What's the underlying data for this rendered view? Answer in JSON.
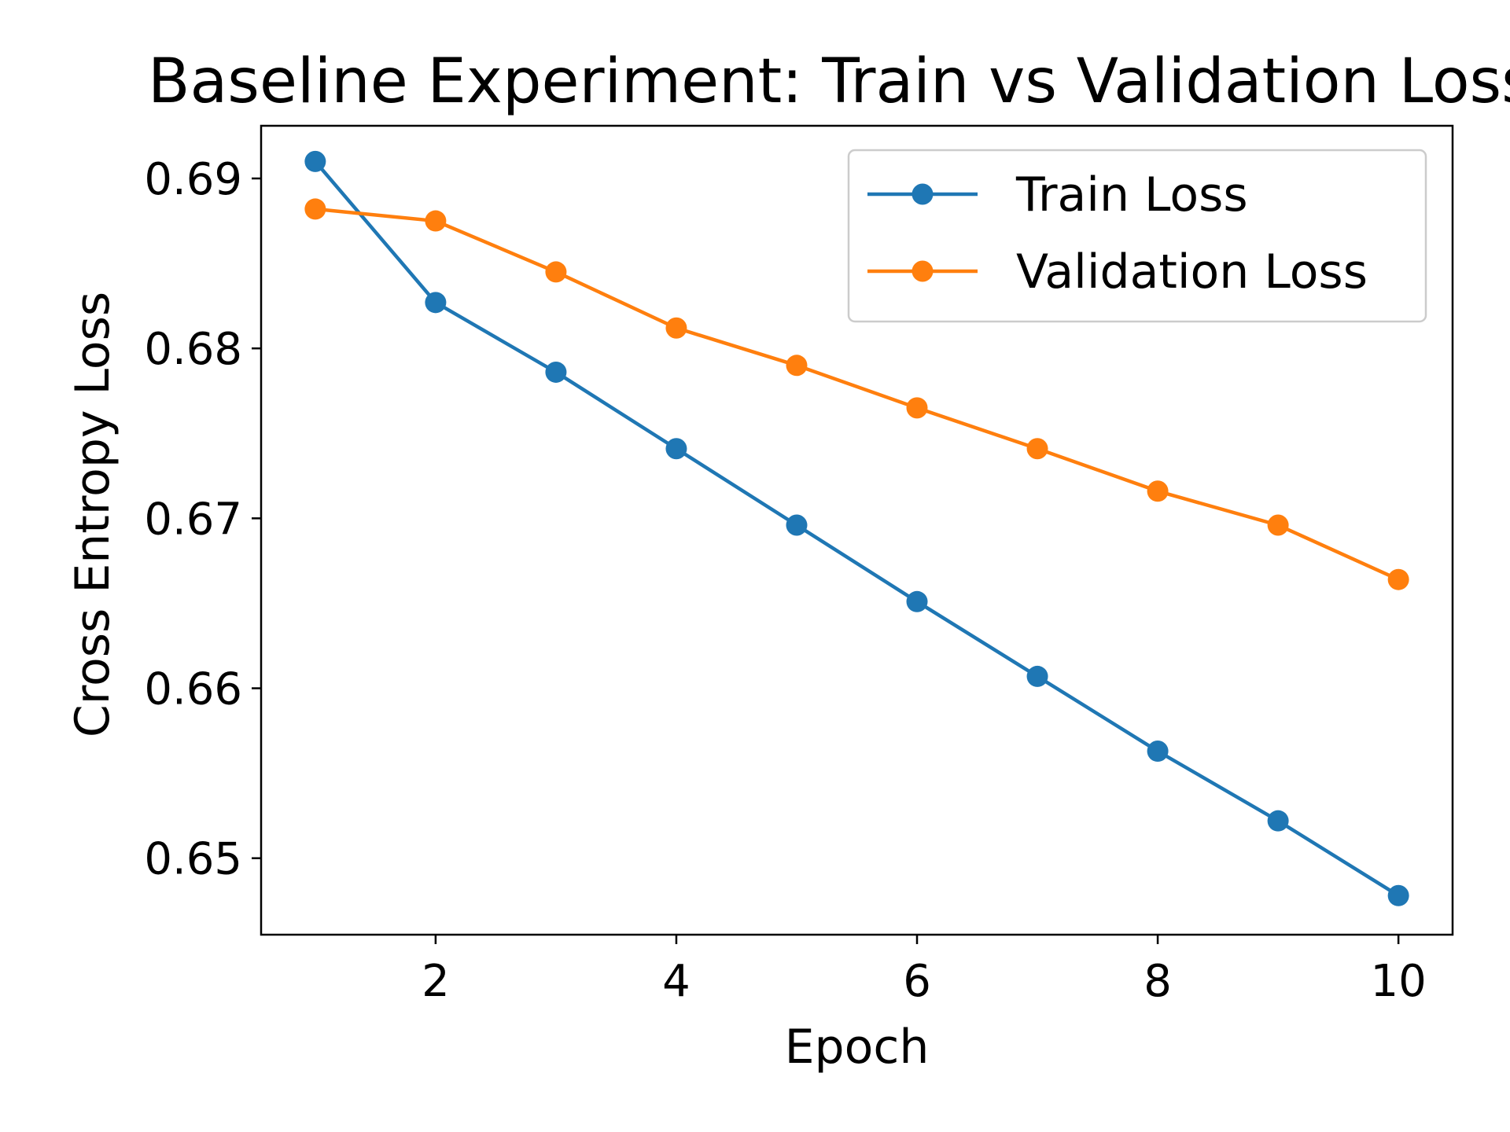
{
  "chart_data": {
    "type": "line",
    "title": "Baseline Experiment: Train vs Validation Loss",
    "xlabel": "Epoch",
    "ylabel": "Cross Entropy Loss",
    "x": [
      1,
      2,
      3,
      4,
      5,
      6,
      7,
      8,
      9,
      10
    ],
    "xlim": [
      0.55,
      10.45
    ],
    "ylim": [
      0.6455,
      0.6931
    ],
    "xticks": [
      2,
      4,
      6,
      8,
      10
    ],
    "xtick_labels": [
      "2",
      "4",
      "6",
      "8",
      "10"
    ],
    "yticks": [
      0.65,
      0.66,
      0.67,
      0.68,
      0.69
    ],
    "ytick_labels": [
      "0.65",
      "0.66",
      "0.67",
      "0.68",
      "0.69"
    ],
    "grid": false,
    "legend_position": "top-right",
    "series": [
      {
        "name": "Train Loss",
        "color": "#1f77b4",
        "marker": "circle",
        "values": [
          0.691,
          0.6827,
          0.6786,
          0.6741,
          0.6696,
          0.6651,
          0.6607,
          0.6563,
          0.6522,
          0.6478
        ]
      },
      {
        "name": "Validation Loss",
        "color": "#ff7f0e",
        "marker": "circle",
        "values": [
          0.6882,
          0.6875,
          0.6845,
          0.6812,
          0.679,
          0.6765,
          0.6741,
          0.6716,
          0.6696,
          0.6664
        ]
      }
    ]
  }
}
